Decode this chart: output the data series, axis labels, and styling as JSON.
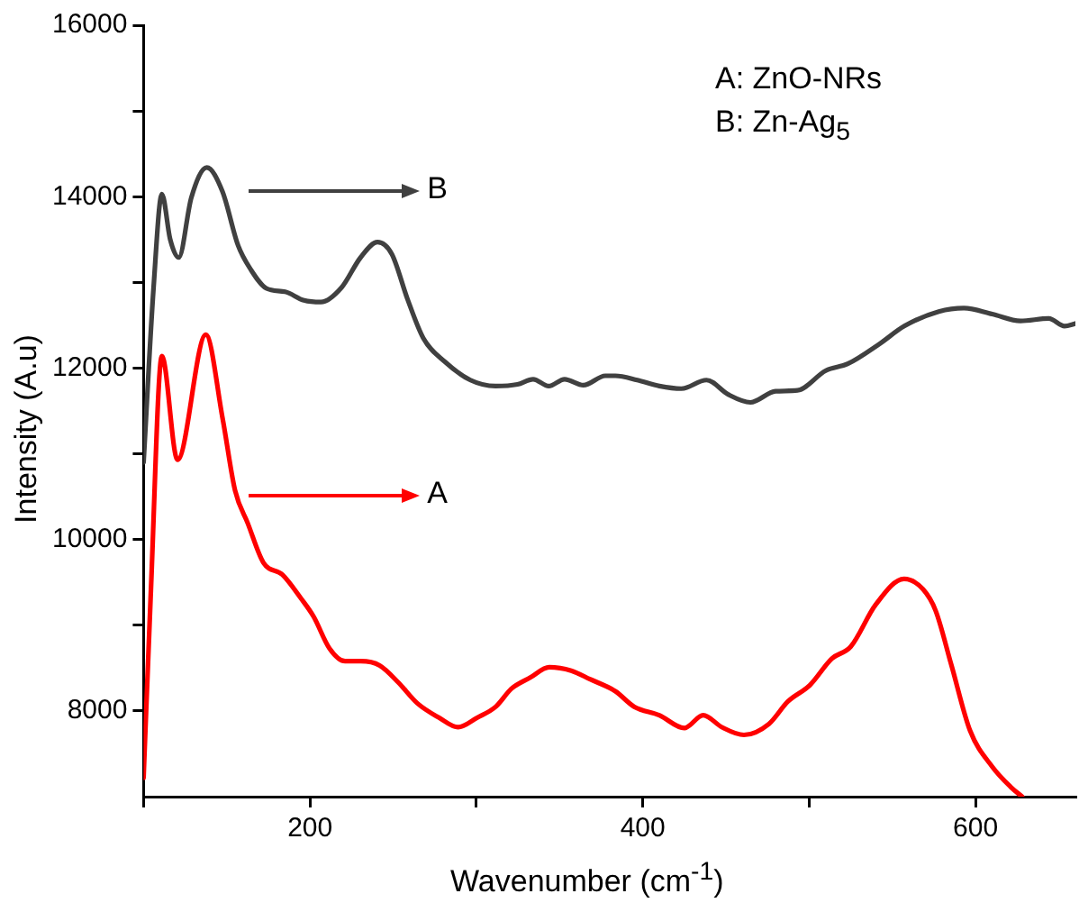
{
  "chart_data": {
    "type": "line",
    "xlabel": "Wavenumber (cm$^{-1}$)",
    "ylabel": "Intensity (A.u)",
    "xlim": [
      100,
      660
    ],
    "ylim": [
      7000,
      16000
    ],
    "xticks": [
      {
        "value": 100,
        "label": null
      },
      200,
      {
        "value": 300,
        "label": null
      },
      400,
      {
        "value": 500,
        "label": null
      },
      600
    ],
    "yticks": [
      8000,
      {
        "value": 9000,
        "label": null
      },
      10000,
      {
        "value": 11000,
        "label": null
      },
      12000,
      {
        "value": 13000,
        "label": null
      },
      14000,
      {
        "value": 15000,
        "label": null
      },
      16000
    ],
    "grid": false,
    "legend": false,
    "marker": "none",
    "line_style": "solid",
    "series": [
      {
        "color": "#ff0000",
        "x": [
          100,
          104.2,
          111,
          120.4,
          137.4,
          147.5,
          155,
          162.6,
          172,
          183.4,
          194.7,
          202.2,
          211.7,
          221.1,
          230.5,
          241.9,
          253.2,
          264.5,
          277.7,
          289,
          300.4,
          311.7,
          321.1,
          332.4,
          343.8,
          357,
          368.3,
          383.5,
          394.8,
          409.9,
          425,
          436.3,
          447.6,
          460.8,
          475.9,
          487.2,
          500.4,
          513.6,
          525,
          540,
          557,
          568.4,
          576,
          585.4,
          596.7,
          610,
          621.3,
          628
        ],
        "values": [
          7220,
          9310,
          12140,
          10930,
          12390,
          11410,
          10570,
          10190,
          9730,
          9590,
          9310,
          9100,
          8730,
          8580,
          8580,
          8530,
          8330,
          8090,
          7920,
          7810,
          7920,
          8050,
          8260,
          8390,
          8510,
          8470,
          8370,
          8230,
          8050,
          7950,
          7800,
          7950,
          7810,
          7720,
          7850,
          8110,
          8300,
          8610,
          8750,
          9240,
          9540,
          9420,
          9170,
          8540,
          7770,
          7350,
          7110,
          7000
        ]
      },
      {
        "color": "#404040",
        "x": [
          100,
          106,
          111,
          116,
          121.1,
          128.7,
          138,
          147.4,
          156.8,
          164.4,
          173.8,
          185.1,
          196.4,
          206.6,
          219,
          230.4,
          240.6,
          249.2,
          258.7,
          268.1,
          281.3,
          296.4,
          311.5,
          324.7,
          334.1,
          343.5,
          353,
          364.3,
          377.5,
          383.5,
          396.7,
          410,
          423.2,
          438.3,
          451.5,
          464.7,
          479.8,
          493,
          510,
          523.2,
          542.1,
          557.2,
          577.9,
          593,
          610,
          627,
          644,
          653.5,
          660
        ],
        "values": [
          10900,
          12940,
          14030,
          13500,
          13290,
          13990,
          14340,
          14060,
          13430,
          13150,
          12930,
          12890,
          12790,
          12770,
          12940,
          13290,
          13470,
          13330,
          12800,
          12350,
          12070,
          11860,
          11790,
          11810,
          11870,
          11790,
          11870,
          11800,
          11910,
          11910,
          11860,
          11790,
          11760,
          11860,
          11690,
          11600,
          11730,
          11740,
          11970,
          12050,
          12280,
          12490,
          12660,
          12700,
          12630,
          12550,
          12580,
          12490,
          12520
        ]
      }
    ],
    "annotations": [
      "A",
      "B",
      "A: ZnO-NRs",
      "B: Zn-Ag$_{5}$"
    ]
  }
}
